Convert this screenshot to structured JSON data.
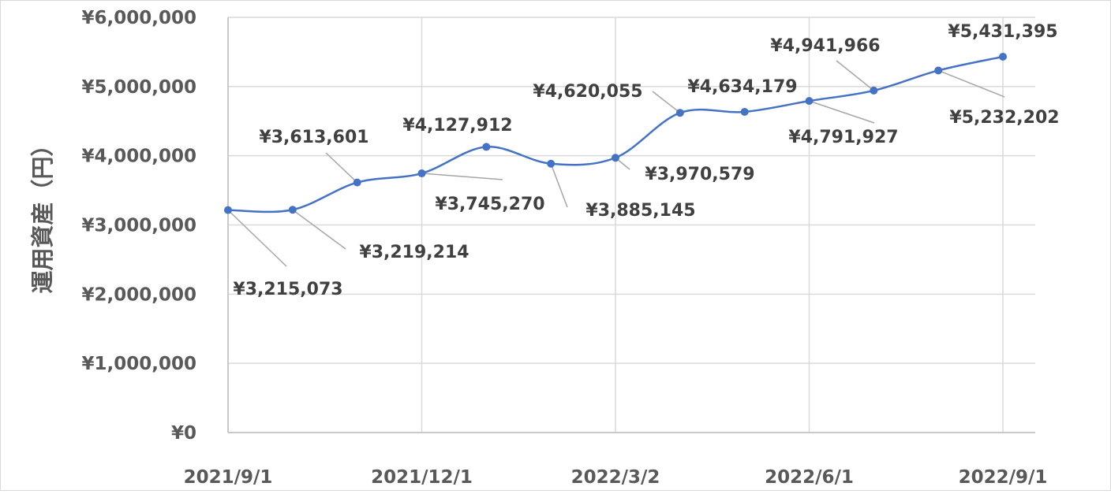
{
  "chart_data": {
    "type": "line",
    "title": "",
    "xlabel": "",
    "ylabel": "運用資産（円）",
    "x": [
      "2021/9/1",
      "2021/10/1",
      "2021/11/1",
      "2021/12/1",
      "2022/1/1",
      "2022/2/1",
      "2022/3/2",
      "2022/4/1",
      "2022/5/1",
      "2022/6/1",
      "2022/7/1",
      "2022/8/1",
      "2022/9/1"
    ],
    "x_tick_labels": [
      "2021/9/1",
      "2021/12/1",
      "2022/3/2",
      "2022/6/1",
      "2022/9/1"
    ],
    "y_tick_labels": [
      "¥0",
      "¥1,000,000",
      "¥2,000,000",
      "¥3,000,000",
      "¥4,000,000",
      "¥5,000,000",
      "¥6,000,000"
    ],
    "ylim": [
      0,
      6000000
    ],
    "y_ticks": [
      0,
      1000000,
      2000000,
      3000000,
      4000000,
      5000000,
      6000000
    ],
    "grid": true,
    "line_color": "#4472C4",
    "series": [
      {
        "values": [
          3215073,
          3219214,
          3613601,
          3745270,
          4127912,
          3885145,
          3970579,
          4620055,
          4634179,
          4791927,
          4941966,
          5232202,
          5431395
        ],
        "labels": [
          "¥3,215,073",
          "¥3,219,214",
          "¥3,613,601",
          "¥3,745,270",
          "¥4,127,912",
          "¥3,885,145",
          "¥3,970,579",
          "¥4,620,055",
          "¥4,634,179",
          "¥4,791,927",
          "¥4,941,966",
          "¥5,232,202",
          "¥5,431,395"
        ]
      }
    ]
  }
}
